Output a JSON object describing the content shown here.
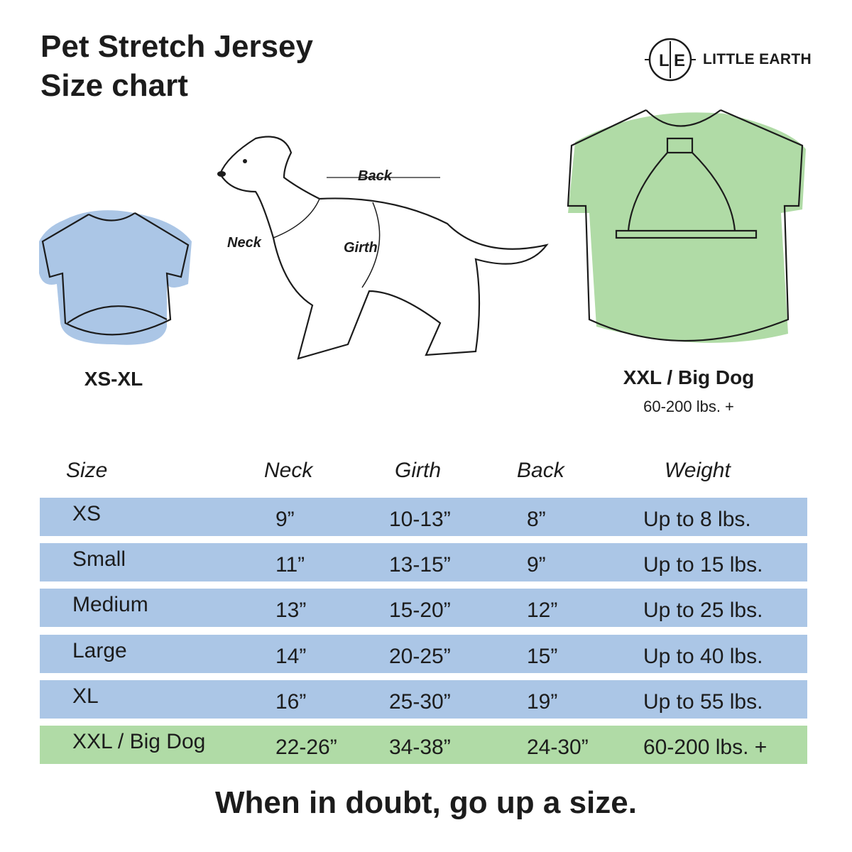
{
  "title": {
    "line1": "Pet Stretch Jersey",
    "line2": "Size chart"
  },
  "brand": {
    "monogram": "L|E",
    "name": "LITTLE EARTH"
  },
  "illustrations": {
    "small_shirt_caption": "XS-XL",
    "dog_labels": {
      "back": "Back",
      "neck": "Neck",
      "girth": "Girth"
    },
    "big_shirt_caption": "XXL / Big Dog",
    "big_shirt_sub": "60-200 lbs. +"
  },
  "colors": {
    "blue": "#abc6e6",
    "green": "#b0dba6",
    "text": "#1c1c1c"
  },
  "table": {
    "headers": [
      "Size",
      "Neck",
      "Girth",
      "Back",
      "Weight"
    ],
    "rows": [
      {
        "size": "XS",
        "neck": "9”",
        "girth": "10-13”",
        "back": "8”",
        "weight": "Up to 8 lbs.",
        "color": "blue"
      },
      {
        "size": "Small",
        "neck": "11”",
        "girth": "13-15”",
        "back": "9”",
        "weight": "Up to 15 lbs.",
        "color": "blue"
      },
      {
        "size": "Medium",
        "neck": "13”",
        "girth": "15-20”",
        "back": "12”",
        "weight": "Up to 25 lbs.",
        "color": "blue"
      },
      {
        "size": "Large",
        "neck": "14”",
        "girth": "20-25”",
        "back": "15”",
        "weight": "Up to 40 lbs.",
        "color": "blue"
      },
      {
        "size": "XL",
        "neck": "16”",
        "girth": "25-30”",
        "back": "19”",
        "weight": "Up to 55 lbs.",
        "color": "blue"
      },
      {
        "size": "XXL / Big Dog",
        "neck": "22-26”",
        "girth": "34-38”",
        "back": "24-30”",
        "weight": "60-200 lbs. +",
        "color": "green"
      }
    ]
  },
  "footer": "When in doubt, go up a size."
}
